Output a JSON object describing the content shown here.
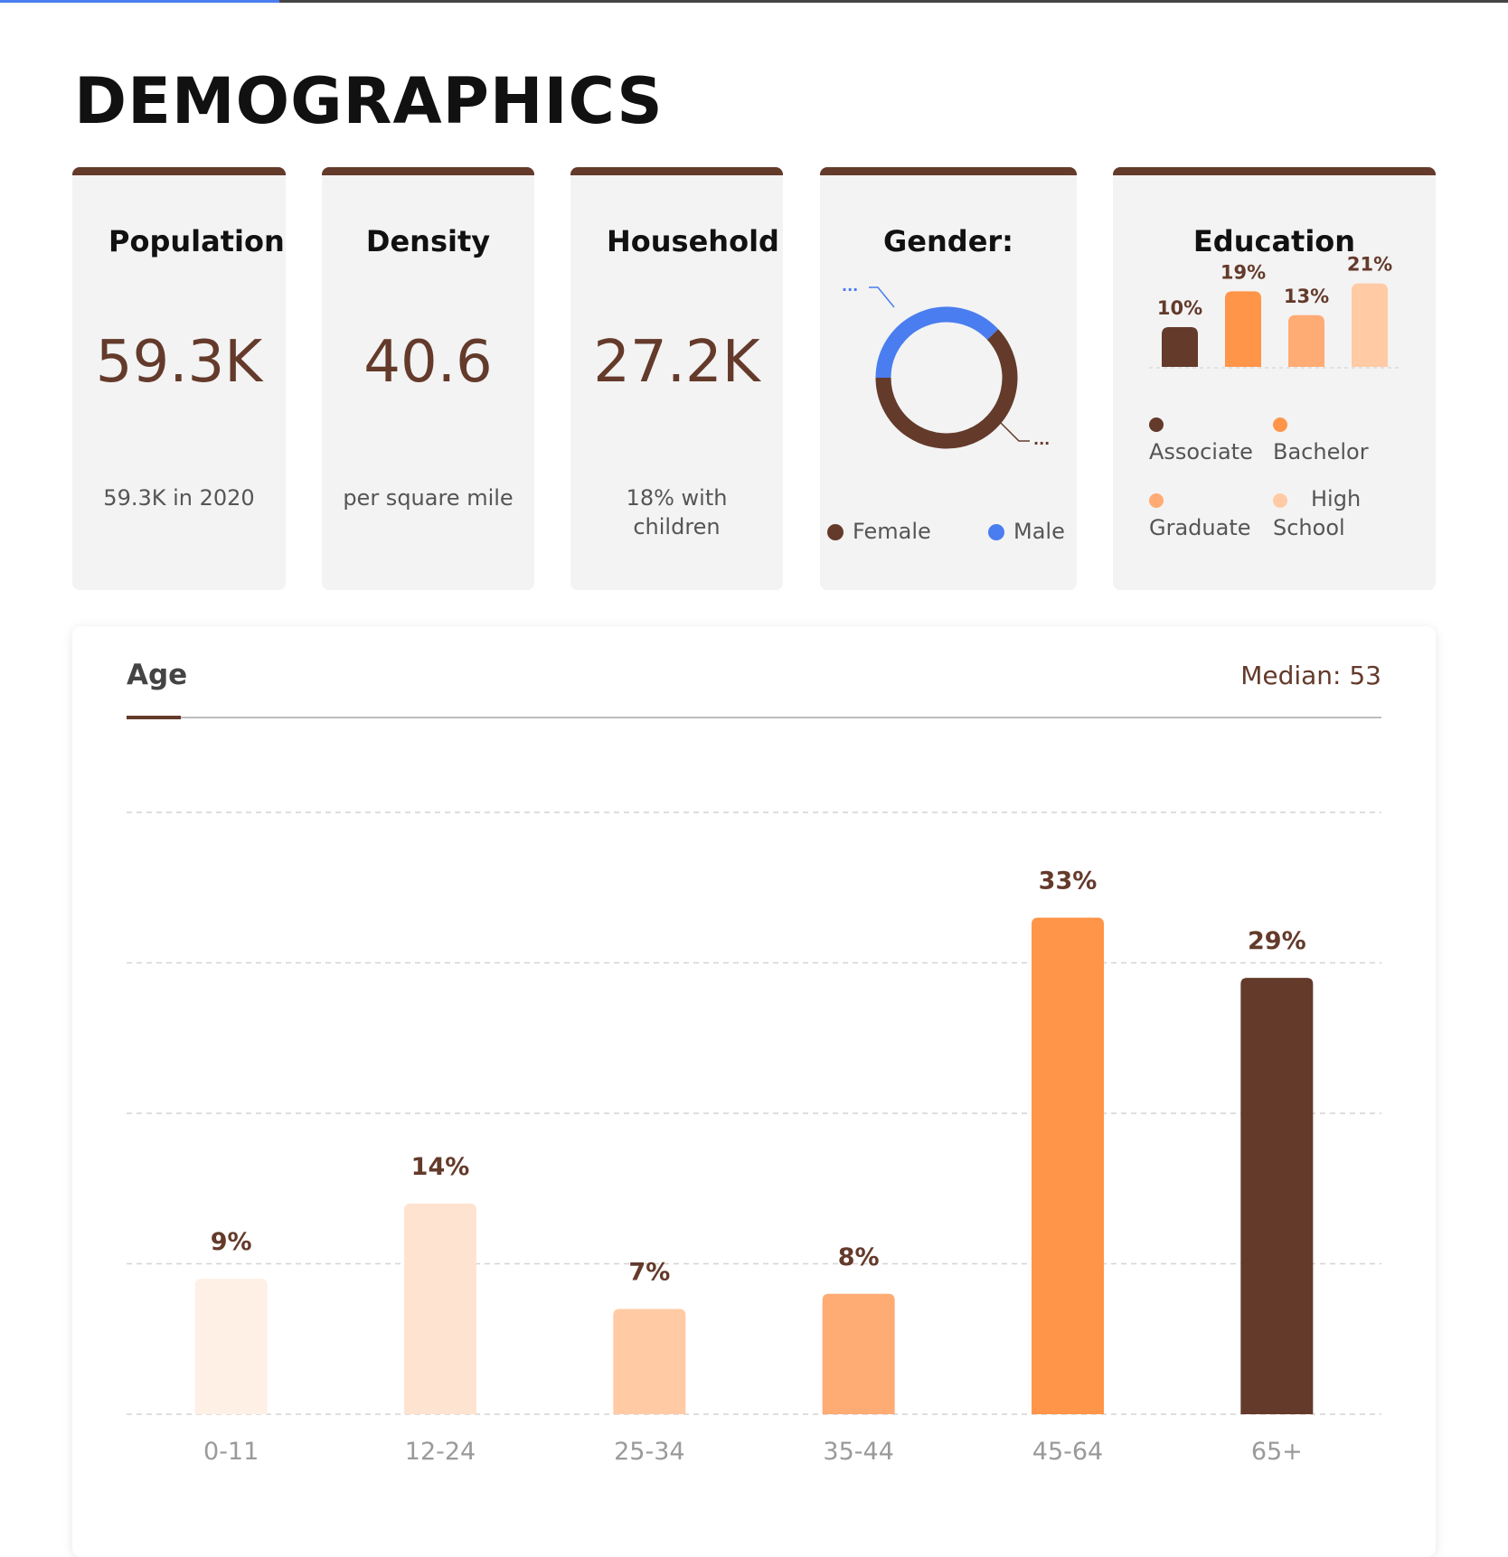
{
  "header": {
    "title": "DEMOGRAPHICS",
    "progress_percent": 18.5
  },
  "cards": {
    "population": {
      "title": "Population",
      "value": "59.3K",
      "subtitle": "59.3K in 2020"
    },
    "density": {
      "title": "Density",
      "value": "40.6",
      "subtitle": "per square mile"
    },
    "household": {
      "title": "Household",
      "value": "27.2K",
      "subtitle": "18% with children"
    },
    "gender": {
      "title": "Gender:",
      "callout_top": "...",
      "callout_bottom": "...",
      "legend": [
        {
          "label": "Female",
          "color": "#643a2b"
        },
        {
          "label": "Male",
          "color": "#4a7df0"
        }
      ]
    },
    "education": {
      "title": "Education",
      "legend": [
        {
          "label": "Associate",
          "color": "#643a2b"
        },
        {
          "label": "Bachelor",
          "color": "#ff9549"
        },
        {
          "label": "Graduate",
          "color": "#ffab74"
        },
        {
          "label": "High School",
          "color": "#ffcaa4"
        }
      ]
    }
  },
  "age": {
    "tab_label": "Age",
    "median_text": "Median: 53"
  },
  "chart_data": [
    {
      "type": "pie",
      "variant": "donut",
      "labels": [
        "Female",
        "Male"
      ],
      "values": [
        62,
        38
      ],
      "colors": [
        "#643a2b",
        "#4a7df0"
      ]
    },
    {
      "type": "bar",
      "categories": [
        "Associate",
        "Bachelor",
        "Graduate",
        "High School"
      ],
      "values": [
        10,
        19,
        13,
        21
      ],
      "value_labels": [
        "10%",
        "19%",
        "13%",
        "21%"
      ],
      "colors": [
        "#643a2b",
        "#ff9549",
        "#ffab74",
        "#ffcaa4"
      ],
      "ylim": [
        0,
        25
      ]
    },
    {
      "type": "bar",
      "categories": [
        "0-11",
        "12-24",
        "25-34",
        "35-44",
        "45-64",
        "65+"
      ],
      "values": [
        9,
        14,
        7,
        8,
        33,
        29
      ],
      "value_labels": [
        "9%",
        "14%",
        "7%",
        "8%",
        "33%",
        "29%"
      ],
      "colors": [
        "#fff0e6",
        "#ffe3d1",
        "#ffcaa4",
        "#ffab74",
        "#ff9549",
        "#643a2b"
      ],
      "ylim": [
        0,
        40
      ],
      "grid": true
    }
  ]
}
